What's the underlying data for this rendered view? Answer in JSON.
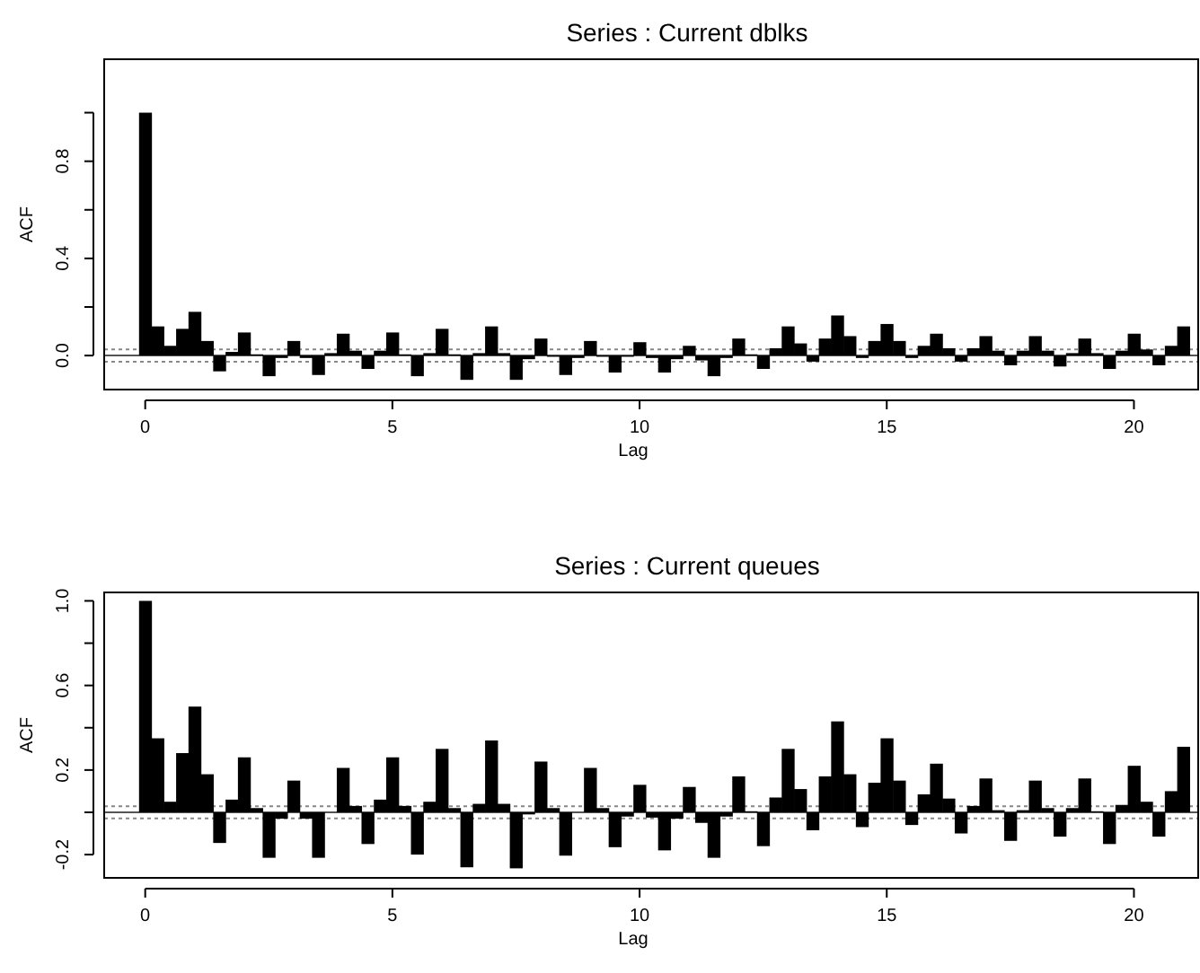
{
  "chart_data": [
    {
      "type": "bar",
      "title": "Series : Current dblks",
      "xlabel": "Lag",
      "ylabel": "ACF",
      "x": [
        0,
        0.25,
        0.5,
        0.75,
        1,
        1.25,
        1.5,
        1.75,
        2,
        2.25,
        2.5,
        2.75,
        3,
        3.25,
        3.5,
        3.75,
        4,
        4.25,
        4.5,
        4.75,
        5,
        5.25,
        5.5,
        5.75,
        6,
        6.25,
        6.5,
        6.75,
        7,
        7.25,
        7.5,
        7.75,
        8,
        8.25,
        8.5,
        8.75,
        9,
        9.25,
        9.5,
        9.75,
        10,
        10.25,
        10.5,
        10.75,
        11,
        11.25,
        11.5,
        11.75,
        12,
        12.25,
        12.5,
        12.75,
        13,
        13.25,
        13.5,
        13.75,
        14,
        14.25,
        14.5,
        14.75,
        15,
        15.25,
        15.5,
        15.75,
        16,
        16.25,
        16.5,
        16.75,
        17,
        17.25,
        17.5,
        17.75,
        18,
        18.25,
        18.5,
        18.75,
        19,
        19.25,
        19.5,
        19.75,
        20,
        20.25,
        20.5,
        20.75,
        21
      ],
      "series": [
        {
          "color": "#000000",
          "values": [
            1.0,
            0.12,
            0.04,
            0.11,
            0.18,
            0.06,
            -0.065,
            0.015,
            0.095,
            0.005,
            -0.085,
            -0.01,
            0.06,
            -0.01,
            -0.08,
            0.01,
            0.09,
            0.02,
            -0.055,
            0.02,
            0.095,
            0.005,
            -0.085,
            0.01,
            0.11,
            0.005,
            -0.1,
            0.01,
            0.12,
            0.01,
            -0.1,
            -0.015,
            0.07,
            -0.005,
            -0.08,
            -0.01,
            0.06,
            -0.005,
            -0.07,
            -0.005,
            0.055,
            -0.01,
            -0.07,
            -0.015,
            0.04,
            -0.02,
            -0.085,
            -0.01,
            0.07,
            0.005,
            -0.055,
            0.03,
            0.12,
            0.05,
            -0.025,
            0.07,
            0.165,
            0.08,
            -0.01,
            0.06,
            0.13,
            0.06,
            -0.01,
            0.04,
            0.09,
            0.03,
            -0.025,
            0.03,
            0.08,
            0.02,
            -0.04,
            0.02,
            0.08,
            0.02,
            -0.045,
            0.01,
            0.07,
            0.01,
            -0.055,
            0.02,
            0.09,
            0.025,
            -0.04,
            0.04,
            0.12
          ]
        }
      ],
      "xlim": [
        -0.83,
        21.3
      ],
      "xticks": [
        0,
        5,
        10,
        15,
        20
      ],
      "ylim": [
        -0.14,
        1.22
      ],
      "yticks": [
        {
          "value": 0,
          "label": "0.0"
        },
        {
          "value": 0.2,
          "label": null
        },
        0.4,
        {
          "value": 0.6,
          "label": null
        },
        0.8,
        {
          "value": 1,
          "label": null
        }
      ],
      "ref_lines": [
        {
          "axis": "y",
          "value": 0,
          "color": "#555555",
          "line_style": "solid"
        },
        {
          "axis": "y",
          "value": 0.025,
          "color": "#888888",
          "line_style": "dotted"
        },
        {
          "axis": "y",
          "value": -0.025,
          "color": "#888888",
          "line_style": "dotted"
        }
      ]
    },
    {
      "type": "bar",
      "title": "Series : Current queues",
      "xlabel": "Lag",
      "ylabel": "ACF",
      "x": [
        0,
        0.25,
        0.5,
        0.75,
        1,
        1.25,
        1.5,
        1.75,
        2,
        2.25,
        2.5,
        2.75,
        3,
        3.25,
        3.5,
        3.75,
        4,
        4.25,
        4.5,
        4.75,
        5,
        5.25,
        5.5,
        5.75,
        6,
        6.25,
        6.5,
        6.75,
        7,
        7.25,
        7.5,
        7.75,
        8,
        8.25,
        8.5,
        8.75,
        9,
        9.25,
        9.5,
        9.75,
        10,
        10.25,
        10.5,
        10.75,
        11,
        11.25,
        11.5,
        11.75,
        12,
        12.25,
        12.5,
        12.75,
        13,
        13.25,
        13.5,
        13.75,
        14,
        14.25,
        14.5,
        14.75,
        15,
        15.25,
        15.5,
        15.75,
        16,
        16.25,
        16.5,
        16.75,
        17,
        17.25,
        17.5,
        17.75,
        18,
        18.25,
        18.5,
        18.75,
        19,
        19.25,
        19.5,
        19.75,
        20,
        20.25,
        20.5,
        20.75,
        21
      ],
      "series": [
        {
          "color": "#000000",
          "values": [
            1.0,
            0.35,
            0.05,
            0.28,
            0.5,
            0.18,
            -0.145,
            0.06,
            0.26,
            0.02,
            -0.215,
            -0.03,
            0.15,
            -0.03,
            -0.215,
            0.0,
            0.21,
            0.03,
            -0.15,
            0.06,
            0.26,
            0.03,
            -0.2,
            0.05,
            0.3,
            0.02,
            -0.26,
            0.04,
            0.34,
            0.04,
            -0.265,
            -0.01,
            0.24,
            0.02,
            -0.205,
            0.0,
            0.21,
            0.02,
            -0.165,
            -0.02,
            0.13,
            -0.025,
            -0.18,
            -0.03,
            0.12,
            -0.05,
            -0.215,
            -0.02,
            0.17,
            0.005,
            -0.16,
            0.07,
            0.3,
            0.11,
            -0.085,
            0.17,
            0.43,
            0.18,
            -0.07,
            0.14,
            0.35,
            0.15,
            -0.06,
            0.085,
            0.23,
            0.065,
            -0.1,
            0.03,
            0.16,
            0.01,
            -0.135,
            0.01,
            0.15,
            0.02,
            -0.115,
            0.02,
            0.16,
            0.005,
            -0.15,
            0.035,
            0.22,
            0.05,
            -0.115,
            0.1,
            0.31
          ]
        }
      ],
      "xlim": [
        -0.83,
        21.3
      ],
      "xticks": [
        0,
        5,
        10,
        15,
        20
      ],
      "ylim": [
        -0.31,
        1.04
      ],
      "yticks": [
        -0.2,
        {
          "value": 0,
          "label": null
        },
        0.2,
        {
          "value": 0.4,
          "label": null
        },
        0.6,
        {
          "value": 0.8,
          "label": null
        },
        {
          "value": 1,
          "label": "1.0"
        }
      ],
      "ref_lines": [
        {
          "axis": "y",
          "value": 0,
          "color": "#555555",
          "line_style": "solid"
        },
        {
          "axis": "y",
          "value": 0.029,
          "color": "#888888",
          "line_style": "dotted"
        },
        {
          "axis": "y",
          "value": -0.029,
          "color": "#888888",
          "line_style": "dotted"
        }
      ]
    }
  ]
}
